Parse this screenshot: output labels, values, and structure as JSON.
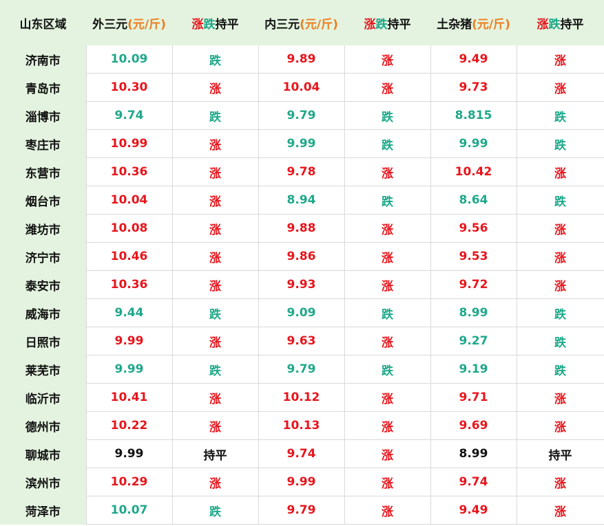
{
  "header": {
    "region": "山东区域",
    "col_outer": {
      "name": "外三元",
      "unit": "(元/斤)"
    },
    "col_inner": {
      "name": "内三元",
      "unit": "(元/斤)"
    },
    "col_local": {
      "name": "土杂猪",
      "unit": "(元/斤)"
    },
    "trend": {
      "up": "涨",
      "down": "跌",
      "flat": "持平"
    }
  },
  "colors": {
    "up": "#e8141b",
    "down": "#1ea88a",
    "flat": "#111111",
    "unit": "#f07c1d",
    "header_bg": "#e3f3df"
  },
  "rows": [
    {
      "city": "济南市",
      "outer": "10.09",
      "outer_trend": "跌",
      "inner": "9.89",
      "inner_trend": "涨",
      "local": "9.49",
      "local_trend": "涨"
    },
    {
      "city": "青岛市",
      "outer": "10.30",
      "outer_trend": "涨",
      "inner": "10.04",
      "inner_trend": "涨",
      "local": "9.73",
      "local_trend": "涨"
    },
    {
      "city": "淄博市",
      "outer": "9.74",
      "outer_trend": "跌",
      "inner": "9.79",
      "inner_trend": "跌",
      "local": "8.815",
      "local_trend": "跌"
    },
    {
      "city": "枣庄市",
      "outer": "10.99",
      "outer_trend": "涨",
      "inner": "9.99",
      "inner_trend": "跌",
      "local": "9.99",
      "local_trend": "跌"
    },
    {
      "city": "东营市",
      "outer": "10.36",
      "outer_trend": "涨",
      "inner": "9.78",
      "inner_trend": "涨",
      "local": "10.42",
      "local_trend": "涨"
    },
    {
      "city": "烟台市",
      "outer": "10.04",
      "outer_trend": "涨",
      "inner": "8.94",
      "inner_trend": "跌",
      "local": "8.64",
      "local_trend": "跌"
    },
    {
      "city": "潍坊市",
      "outer": "10.08",
      "outer_trend": "涨",
      "inner": "9.88",
      "inner_trend": "涨",
      "local": "9.56",
      "local_trend": "涨"
    },
    {
      "city": "济宁市",
      "outer": "10.46",
      "outer_trend": "涨",
      "inner": "9.86",
      "inner_trend": "涨",
      "local": "9.53",
      "local_trend": "涨"
    },
    {
      "city": "泰安市",
      "outer": "10.36",
      "outer_trend": "涨",
      "inner": "9.93",
      "inner_trend": "涨",
      "local": "9.72",
      "local_trend": "涨"
    },
    {
      "city": "威海市",
      "outer": "9.44",
      "outer_trend": "跌",
      "inner": "9.09",
      "inner_trend": "跌",
      "local": "8.99",
      "local_trend": "跌"
    },
    {
      "city": "日照市",
      "outer": "9.99",
      "outer_trend": "涨",
      "inner": "9.63",
      "inner_trend": "涨",
      "local": "9.27",
      "local_trend": "跌"
    },
    {
      "city": "莱芜市",
      "outer": "9.99",
      "outer_trend": "跌",
      "inner": "9.79",
      "inner_trend": "跌",
      "local": "9.19",
      "local_trend": "跌"
    },
    {
      "city": "临沂市",
      "outer": "10.41",
      "outer_trend": "涨",
      "inner": "10.12",
      "inner_trend": "涨",
      "local": "9.71",
      "local_trend": "涨"
    },
    {
      "city": "德州市",
      "outer": "10.22",
      "outer_trend": "涨",
      "inner": "10.13",
      "inner_trend": "涨",
      "local": "9.69",
      "local_trend": "涨"
    },
    {
      "city": "聊城市",
      "outer": "9.99",
      "outer_trend": "持平",
      "inner": "9.74",
      "inner_trend": "涨",
      "local": "8.99",
      "local_trend": "持平"
    },
    {
      "city": "滨州市",
      "outer": "10.29",
      "outer_trend": "涨",
      "inner": "9.99",
      "inner_trend": "涨",
      "local": "9.74",
      "local_trend": "涨"
    },
    {
      "city": "菏泽市",
      "outer": "10.07",
      "outer_trend": "跌",
      "inner": "9.79",
      "inner_trend": "涨",
      "local": "9.49",
      "local_trend": "涨"
    }
  ]
}
